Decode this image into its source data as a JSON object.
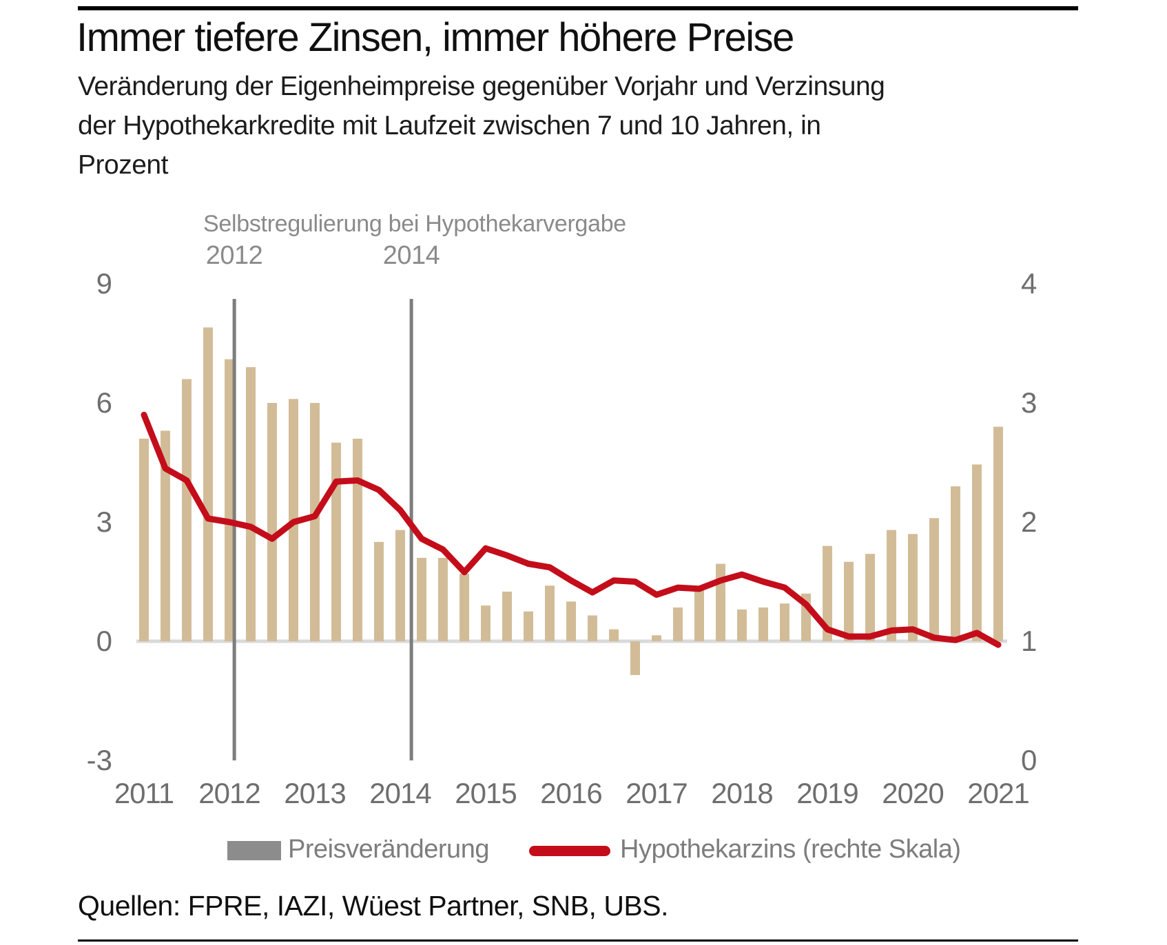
{
  "header": {
    "title": "Immer tiefere Zinsen, immer höhere Preise",
    "subtitle_lines": [
      "Veränderung der Eigenheimpreise gegenüber Vorjahr und Verzinsung",
      "der Hypothekarkredite mit Laufzeit zwischen 7 und 10 Jahren, in",
      "Prozent"
    ]
  },
  "annotation": {
    "label": "Selbstregulierung bei Hypothekarvergabe",
    "vline_years": [
      "2012",
      "2014"
    ]
  },
  "legend": {
    "bar_label": "Preisveränderung",
    "line_label": "Hypothekarzins (rechte Skala)"
  },
  "source": "Quellen: FPRE, IAZI, Wüest Partner, SNB, UBS.",
  "colors": {
    "bar": "#d2bc98",
    "line": "#c40d1a",
    "vline": "#7d7d7d",
    "baseline": "#d9d9d9",
    "axis_text": "#6e6e6e",
    "legend_swatch": "#8c8c8c",
    "annotation_text": "#8a8a8a"
  },
  "chart_data": {
    "type": "bar",
    "title": "Veränderung der Eigenheimpreise gegenüber Vorjahr und Verzinsung der Hypothekarkredite, in Prozent",
    "x": [
      "2011 Q1",
      "2011 Q2",
      "2011 Q3",
      "2011 Q4",
      "2012 Q1",
      "2012 Q2",
      "2012 Q3",
      "2012 Q4",
      "2013 Q1",
      "2013 Q2",
      "2013 Q3",
      "2013 Q4",
      "2014 Q1",
      "2014 Q2",
      "2014 Q3",
      "2014 Q4",
      "2015 Q1",
      "2015 Q2",
      "2015 Q3",
      "2015 Q4",
      "2016 Q1",
      "2016 Q2",
      "2016 Q3",
      "2016 Q4",
      "2017 Q1",
      "2017 Q2",
      "2017 Q3",
      "2017 Q4",
      "2018 Q1",
      "2018 Q2",
      "2018 Q3",
      "2018 Q4",
      "2019 Q1",
      "2019 Q2",
      "2019 Q3",
      "2019 Q4",
      "2020 Q1",
      "2020 Q2",
      "2020 Q3",
      "2020 Q4",
      "2021 Q1"
    ],
    "series": [
      {
        "name": "Preisveränderung",
        "type": "bar",
        "axis": "left",
        "values": [
          5.1,
          5.3,
          6.6,
          7.9,
          7.1,
          6.9,
          6.0,
          6.1,
          6.0,
          5.0,
          5.1,
          2.5,
          2.8,
          2.1,
          2.1,
          1.7,
          0.9,
          1.25,
          0.75,
          1.4,
          1.0,
          0.65,
          0.3,
          -0.85,
          0.15,
          0.85,
          1.3,
          1.95,
          0.8,
          0.85,
          0.95,
          1.2,
          2.4,
          2.0,
          2.2,
          2.8,
          2.7,
          3.1,
          3.9,
          4.45,
          5.4
        ]
      },
      {
        "name": "Hypothekarzins (rechte Skala)",
        "type": "line",
        "axis": "right",
        "values": [
          2.9,
          2.45,
          2.35,
          2.03,
          2.0,
          1.96,
          1.86,
          2.0,
          2.05,
          2.34,
          2.35,
          2.27,
          2.1,
          1.86,
          1.77,
          1.58,
          1.78,
          1.72,
          1.65,
          1.62,
          1.51,
          1.41,
          1.51,
          1.5,
          1.39,
          1.45,
          1.44,
          1.51,
          1.56,
          1.5,
          1.45,
          1.31,
          1.1,
          1.04,
          1.04,
          1.09,
          1.1,
          1.03,
          1.01,
          1.07,
          0.97
        ]
      }
    ],
    "left_axis_ticks": [
      9,
      6,
      3,
      0,
      -3
    ],
    "right_axis_ticks": [
      4,
      3,
      2,
      1,
      0
    ],
    "x_year_labels": [
      "2011",
      "2012",
      "2013",
      "2014",
      "2015",
      "2016",
      "2017",
      "2018",
      "2019",
      "2020",
      "2021"
    ],
    "left_ylim": [
      -3,
      9
    ],
    "right_ylim": [
      0,
      4
    ],
    "grid": false,
    "legend_position": "bottom",
    "annotation_vline_x_index": [
      4.23,
      12.52
    ]
  }
}
